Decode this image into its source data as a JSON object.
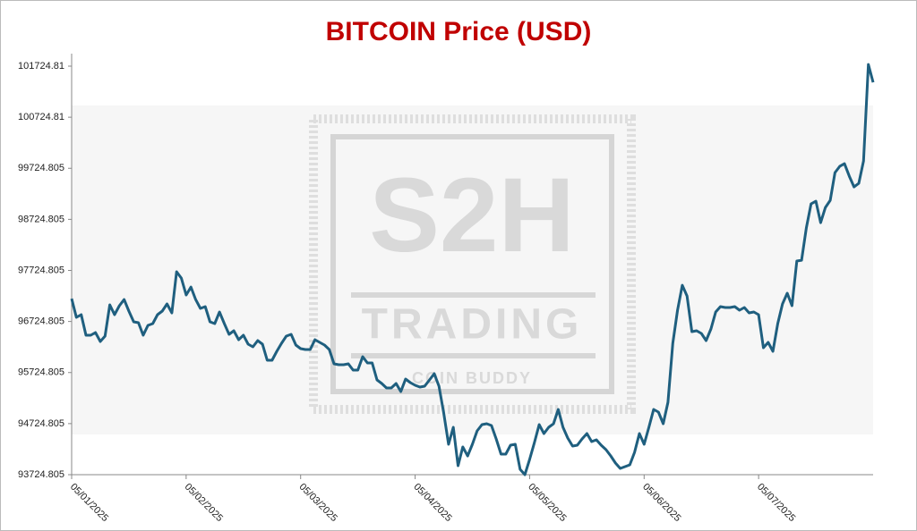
{
  "chart_data": {
    "type": "line",
    "title": "BITCOIN Price (USD)",
    "watermark": {
      "logo": "S2H",
      "name": "TRADING",
      "tagline": "COIN BUDDY"
    },
    "categories": [
      "05/01/2025",
      null,
      null,
      null,
      null,
      null,
      null,
      null,
      null,
      null,
      null,
      null,
      null,
      null,
      null,
      null,
      null,
      null,
      null,
      null,
      null,
      null,
      null,
      null,
      "05/02/2025",
      null,
      null,
      null,
      null,
      null,
      null,
      null,
      null,
      null,
      null,
      null,
      null,
      null,
      null,
      null,
      null,
      null,
      null,
      null,
      null,
      null,
      null,
      null,
      "05/03/2025",
      null,
      null,
      null,
      null,
      null,
      null,
      null,
      null,
      null,
      null,
      null,
      null,
      null,
      null,
      null,
      null,
      null,
      null,
      null,
      null,
      null,
      null,
      null,
      "05/04/2025",
      null,
      null,
      null,
      null,
      null,
      null,
      null,
      null,
      null,
      null,
      null,
      null,
      null,
      null,
      null,
      null,
      null,
      null,
      null,
      null,
      null,
      null,
      null,
      "05/05/2025",
      null,
      null,
      null,
      null,
      null,
      null,
      null,
      null,
      null,
      null,
      null,
      null,
      null,
      null,
      null,
      null,
      null,
      null,
      null,
      null,
      null,
      null,
      null,
      "05/06/2025",
      null,
      null,
      null,
      null,
      null,
      null,
      null,
      null,
      null,
      null,
      null,
      null,
      null,
      null,
      null,
      null,
      null,
      null,
      null,
      null,
      null,
      null,
      null,
      "05/07/2025",
      null,
      null,
      null,
      null,
      null,
      null,
      null,
      null,
      null,
      null,
      null,
      null,
      null,
      null,
      null,
      null,
      null,
      null,
      null,
      null,
      null,
      null,
      null,
      null
    ],
    "series": [
      {
        "name": "BITCOIN",
        "color": "#1f5f7f",
        "values": [
          97172,
          96805,
          96858,
          96455,
          96455,
          96508,
          96333,
          96438,
          97050,
          96858,
          97033,
          97155,
          96928,
          96718,
          96700,
          96455,
          96648,
          96683,
          96858,
          96928,
          97068,
          96893,
          97698,
          97575,
          97243,
          97400,
          97155,
          96980,
          97015,
          96718,
          96683,
          96910,
          96683,
          96473,
          96543,
          96368,
          96455,
          96280,
          96228,
          96350,
          96280,
          95965,
          95965,
          96140,
          96298,
          96438,
          96473,
          96263,
          96193,
          96175,
          96175,
          96368,
          96315,
          96263,
          96175,
          95895,
          95878,
          95878,
          95895,
          95773,
          95773,
          96035,
          95913,
          95913,
          95580,
          95510,
          95423,
          95423,
          95510,
          95353,
          95598,
          95528,
          95475,
          95440,
          95458,
          95580,
          95703,
          95458,
          94933,
          94320,
          94653,
          93900,
          94268,
          94093,
          94320,
          94583,
          94705,
          94723,
          94688,
          94425,
          94128,
          94128,
          94303,
          94320,
          93830,
          93725,
          94023,
          94355,
          94705,
          94530,
          94653,
          94723,
          95003,
          94653,
          94443,
          94285,
          94303,
          94425,
          94530,
          94373,
          94408,
          94303,
          94215,
          94093,
          93953,
          93848,
          93883,
          93918,
          94163,
          94530,
          94320,
          94653,
          95003,
          94950,
          94723,
          95143,
          96298,
          96945,
          97435,
          97225,
          96525,
          96543,
          96490,
          96350,
          96578,
          96910,
          97015,
          96998,
          96998,
          97015,
          96945,
          96998,
          96893,
          96910,
          96858,
          96210,
          96315,
          96140,
          96683,
          97068,
          97278,
          97033,
          97908,
          97925,
          98555,
          99028,
          99080,
          98660,
          98958,
          99098,
          99640,
          99763,
          99815,
          99570,
          99360,
          99430,
          99868,
          101758,
          101408
        ]
      }
    ],
    "ylim": [
      93724.805,
      101724.81
    ],
    "yticks": [
      93724.805,
      94724.805,
      95724.805,
      96724.805,
      97724.805,
      98724.805,
      99724.805,
      100724.81,
      101724.81
    ],
    "grid": false
  }
}
